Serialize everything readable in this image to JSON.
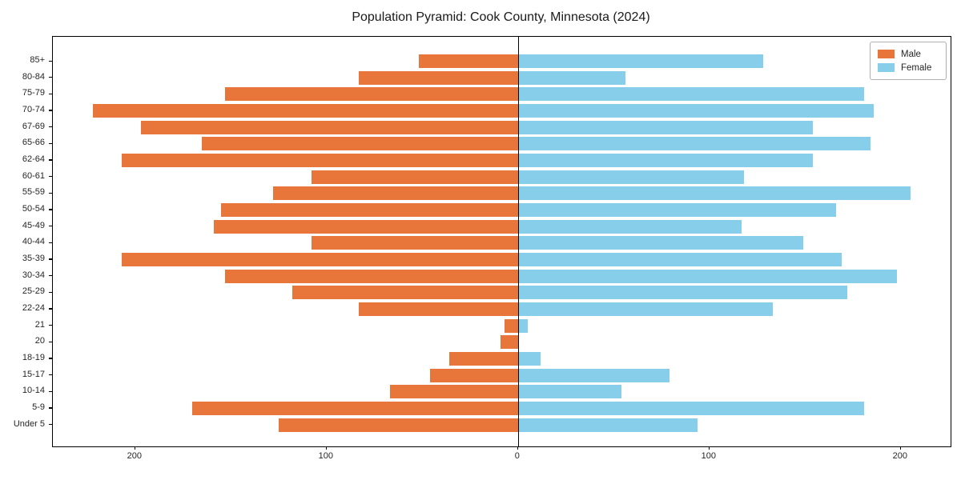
{
  "title": "Population Pyramid: Cook County, Minnesota (2024)",
  "legend": {
    "male_label": "Male",
    "female_label": "Female"
  },
  "colors": {
    "male": "#e8763a",
    "female": "#87ceeb",
    "axis": "#000000",
    "legend_border": "#b0b0b0",
    "background": "#ffffff"
  },
  "chart_data": {
    "type": "bar",
    "subtype": "population-pyramid",
    "title": "Population Pyramid: Cook County, Minnesota (2024)",
    "orientation": "horizontal",
    "grid": false,
    "legend_position": "upper right",
    "categories_top_to_bottom": [
      "85+",
      "80-84",
      "75-79",
      "70-74",
      "67-69",
      "65-66",
      "62-64",
      "60-61",
      "55-59",
      "50-54",
      "45-49",
      "40-44",
      "35-39",
      "30-34",
      "25-29",
      "22-24",
      "21",
      "20",
      "18-19",
      "15-17",
      "10-14",
      "5-9",
      "Under 5"
    ],
    "series": [
      {
        "name": "Male",
        "side": "left",
        "color": "#e8763a",
        "values": [
          52,
          83,
          153,
          222,
          197,
          165,
          207,
          108,
          128,
          155,
          159,
          108,
          207,
          153,
          118,
          83,
          7,
          9,
          36,
          46,
          67,
          170,
          125
        ]
      },
      {
        "name": "Female",
        "side": "right",
        "color": "#87ceeb",
        "values": [
          128,
          56,
          181,
          186,
          154,
          184,
          154,
          118,
          205,
          166,
          117,
          149,
          169,
          198,
          172,
          133,
          5,
          0,
          12,
          79,
          54,
          181,
          94
        ]
      }
    ],
    "xlim": [
      -243,
      226
    ],
    "x_tick_values": [
      -200,
      -100,
      0,
      100,
      200
    ],
    "x_tick_labels": [
      "200",
      "100",
      "0",
      "100",
      "200"
    ],
    "xlabel": "",
    "ylabel": ""
  }
}
